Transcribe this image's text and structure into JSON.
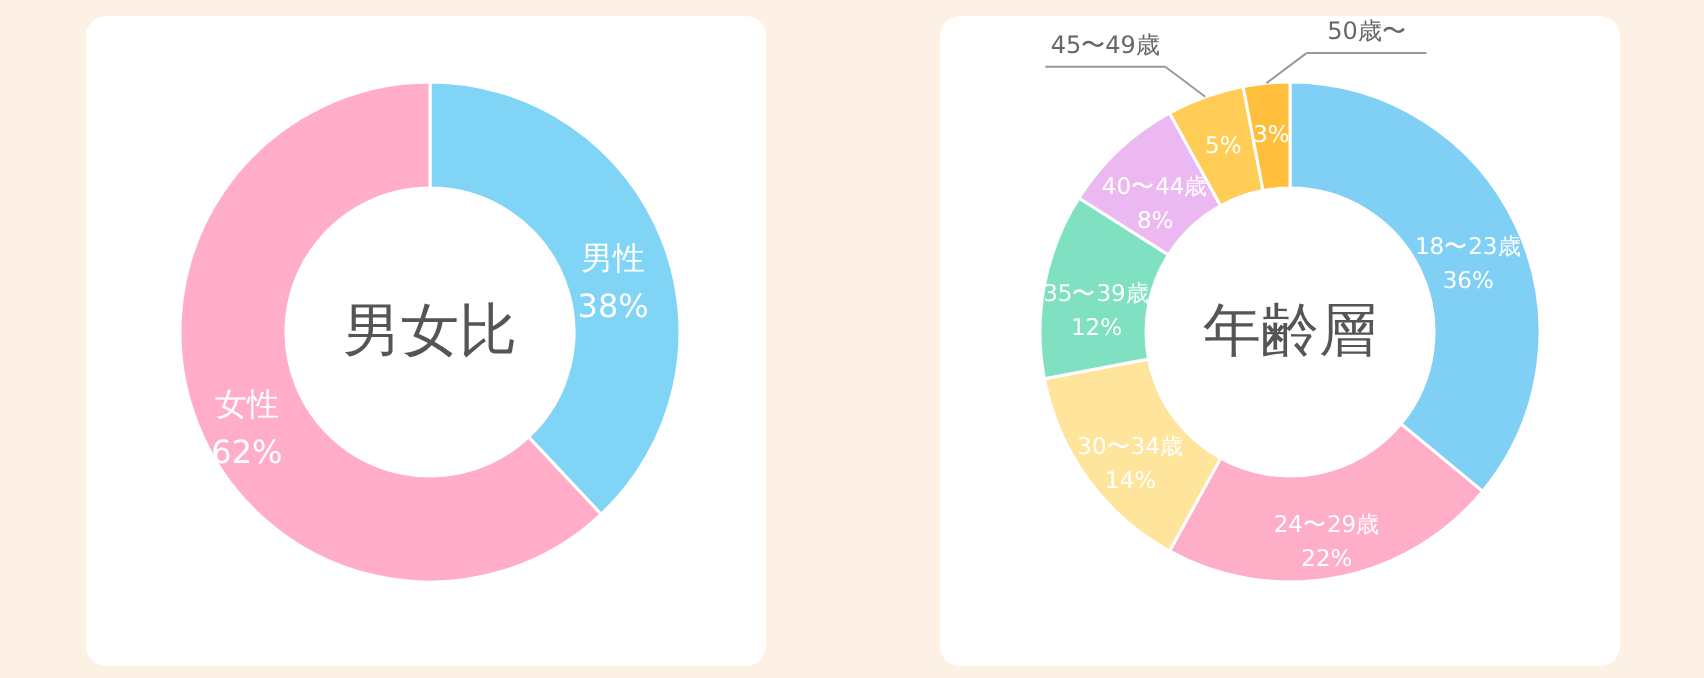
{
  "chart_data": [
    {
      "type": "donut",
      "title": "男女比",
      "categories": [
        "男性",
        "女性"
      ],
      "values": [
        38,
        62
      ],
      "value_labels": [
        "38%",
        "62%"
      ],
      "colors": [
        "#80d4f6",
        "#ffadc8"
      ]
    },
    {
      "type": "donut",
      "title": "年齢層",
      "categories": [
        "18〜23歳",
        "24〜29歳",
        "30〜34歳",
        "35〜39歳",
        "40〜44歳",
        "45〜49歳",
        "50歳〜"
      ],
      "values": [
        36,
        22,
        14,
        12,
        8,
        5,
        3
      ],
      "value_labels": [
        "36%",
        "22%",
        "14%",
        "12%",
        "8%",
        "5%",
        "3%"
      ],
      "colors": [
        "#80d0f5",
        "#ffaec8",
        "#ffe49c",
        "#7fe0c2",
        "#ecb8f2",
        "#ffcd55",
        "#ffbf3c"
      ]
    }
  ]
}
